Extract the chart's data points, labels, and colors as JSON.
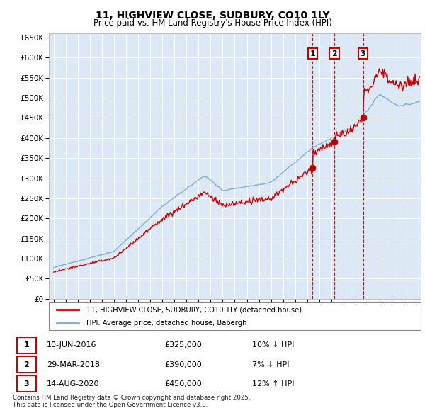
{
  "title": "11, HIGHVIEW CLOSE, SUDBURY, CO10 1LY",
  "subtitle": "Price paid vs. HM Land Registry's House Price Index (HPI)",
  "legend_line1": "11, HIGHVIEW CLOSE, SUDBURY, CO10 1LY (detached house)",
  "legend_line2": "HPI: Average price, detached house, Babergh",
  "footnote": "Contains HM Land Registry data © Crown copyright and database right 2025.\nThis data is licensed under the Open Government Licence v3.0.",
  "transactions": [
    {
      "num": 1,
      "date": "10-JUN-2016",
      "price": "£325,000",
      "change": "10% ↓ HPI"
    },
    {
      "num": 2,
      "date": "29-MAR-2018",
      "price": "£390,000",
      "change": "7% ↓ HPI"
    },
    {
      "num": 3,
      "date": "14-AUG-2020",
      "price": "£450,000",
      "change": "12% ↑ HPI"
    }
  ],
  "sale_dates_year": [
    2016.44,
    2018.24,
    2020.62
  ],
  "sale_prices": [
    325000,
    390000,
    450000
  ],
  "ylim": [
    0,
    660000
  ],
  "xlim_start": 1994.6,
  "xlim_end": 2025.4,
  "bg_color": "#dce8f5",
  "grid_color": "#ffffff",
  "red_color": "#cc0000",
  "blue_color": "#7aaddb",
  "dashed_color": "#cc0000"
}
